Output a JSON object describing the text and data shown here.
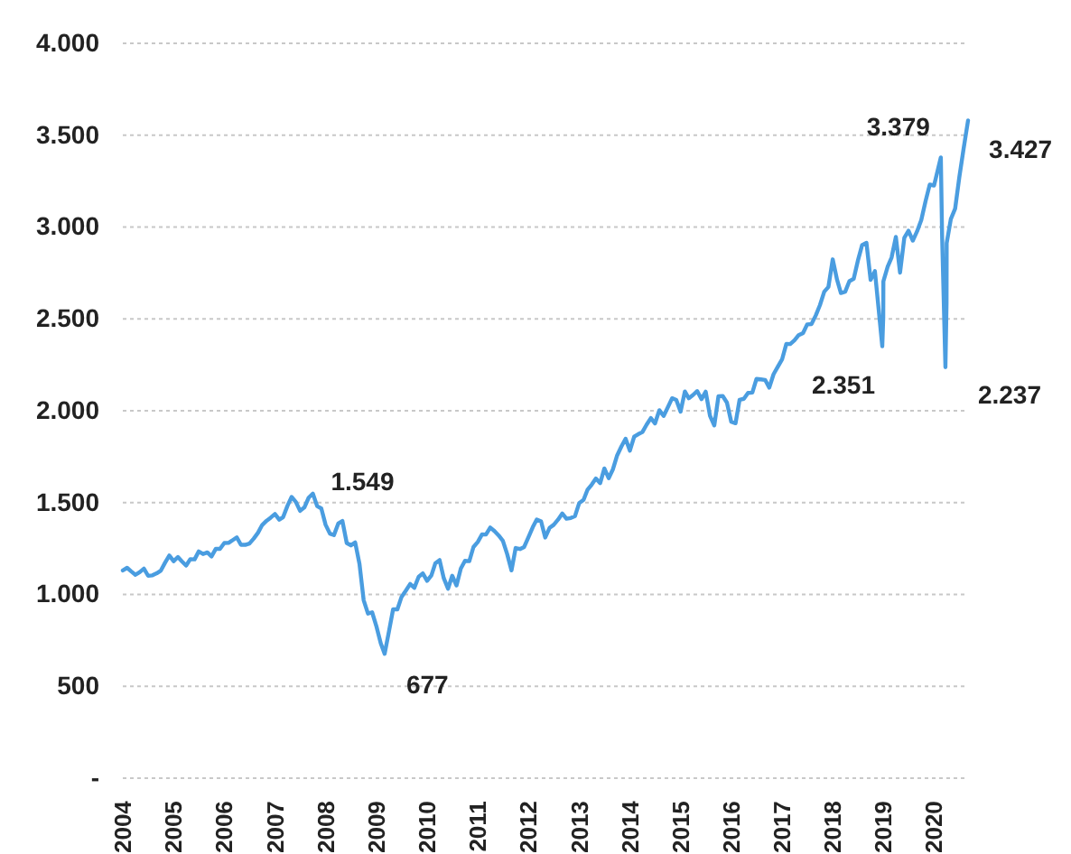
{
  "chart_data": {
    "type": "line",
    "grid": "y",
    "marker": "none",
    "line_style": "solid",
    "xlim": [
      "2004-01-01",
      "2020-09-02"
    ],
    "xticks": [
      "2004",
      "2005",
      "2006",
      "2007",
      "2008",
      "2009",
      "2010",
      "2011",
      "2012",
      "2013",
      "2014",
      "2015",
      "2016",
      "2017",
      "2018",
      "2019",
      "2020"
    ],
    "ylim": [
      0,
      4000
    ],
    "yticks": [
      {
        "value": 0,
        "label": "-"
      },
      500,
      {
        "value": 1000,
        "label": "1.000"
      },
      {
        "value": 1500,
        "label": "1.500"
      },
      {
        "value": 2000,
        "label": "2.000"
      },
      {
        "value": 2500,
        "label": "2.500"
      },
      {
        "value": 3000,
        "label": "3.000"
      },
      {
        "value": 3500,
        "label": "3.500"
      },
      {
        "value": 4000,
        "label": "4.000"
      }
    ],
    "x": [
      "2004-01",
      "2004-02",
      "2004-03",
      "2004-04",
      "2004-05",
      "2004-06",
      "2004-07",
      "2004-08",
      "2004-09",
      "2004-10",
      "2004-11",
      "2004-12",
      "2005-01",
      "2005-02",
      "2005-03",
      "2005-04",
      "2005-05",
      "2005-06",
      "2005-07",
      "2005-08",
      "2005-09",
      "2005-10",
      "2005-11",
      "2005-12",
      "2006-01",
      "2006-02",
      "2006-03",
      "2006-04",
      "2006-05",
      "2006-06",
      "2006-07",
      "2006-08",
      "2006-09",
      "2006-10",
      "2006-11",
      "2006-12",
      "2007-01",
      "2007-02",
      "2007-03",
      "2007-04",
      "2007-05",
      "2007-06",
      "2007-07",
      "2007-08",
      "2007-09",
      "2007-10",
      "2007-11",
      "2007-12",
      "2008-01",
      "2008-02",
      "2008-03",
      "2008-04",
      "2008-05",
      "2008-06",
      "2008-07",
      "2008-08",
      "2008-09",
      "2008-10",
      "2008-11",
      "2008-12",
      "2009-01",
      "2009-02",
      "2009-03",
      "2009-04",
      "2009-05",
      "2009-06",
      "2009-07",
      "2009-08",
      "2009-09",
      "2009-10",
      "2009-11",
      "2009-12",
      "2010-01",
      "2010-02",
      "2010-03",
      "2010-04",
      "2010-05",
      "2010-06",
      "2010-07",
      "2010-08",
      "2010-09",
      "2010-10",
      "2010-11",
      "2010-12",
      "2011-01",
      "2011-02",
      "2011-03",
      "2011-04",
      "2011-05",
      "2011-06",
      "2011-07",
      "2011-08",
      "2011-09",
      "2011-10",
      "2011-11",
      "2011-12",
      "2012-01",
      "2012-02",
      "2012-03",
      "2012-04",
      "2012-05",
      "2012-06",
      "2012-07",
      "2012-08",
      "2012-09",
      "2012-10",
      "2012-11",
      "2012-12",
      "2013-01",
      "2013-02",
      "2013-03",
      "2013-04",
      "2013-05",
      "2013-06",
      "2013-07",
      "2013-08",
      "2013-09",
      "2013-10",
      "2013-11",
      "2013-12",
      "2014-01",
      "2014-02",
      "2014-03",
      "2014-04",
      "2014-05",
      "2014-06",
      "2014-07",
      "2014-08",
      "2014-09",
      "2014-10",
      "2014-11",
      "2014-12",
      "2015-01",
      "2015-02",
      "2015-03",
      "2015-04",
      "2015-05",
      "2015-06",
      "2015-07",
      "2015-08",
      "2015-09",
      "2015-10",
      "2015-11",
      "2015-12",
      "2016-01",
      "2016-02",
      "2016-03",
      "2016-04",
      "2016-05",
      "2016-06",
      "2016-07",
      "2016-08",
      "2016-09",
      "2016-10",
      "2016-11",
      "2016-12",
      "2017-01",
      "2017-02",
      "2017-03",
      "2017-04",
      "2017-05",
      "2017-06",
      "2017-07",
      "2017-08",
      "2017-09",
      "2017-10",
      "2017-11",
      "2017-12",
      "2018-01",
      "2018-02",
      "2018-03",
      "2018-04",
      "2018-05",
      "2018-06",
      "2018-07",
      "2018-08",
      "2018-09",
      "2018-10",
      "2018-11",
      "2018-12-24",
      "2018-12-31",
      "2019-01",
      "2019-02",
      "2019-03",
      "2019-04",
      "2019-05",
      "2019-06",
      "2019-07",
      "2019-08",
      "2019-09",
      "2019-10",
      "2019-11",
      "2019-12",
      "2020-01",
      "2020-02-19",
      "2020-02-28",
      "2020-03-23",
      "2020-03-31",
      "2020-04",
      "2020-05",
      "2020-06",
      "2020-07",
      "2020-08",
      "2020-09-02"
    ],
    "series": [
      {
        "color": "#4a9de0",
        "values": [
          1131,
          1145,
          1126,
          1107,
          1121,
          1141,
          1102,
          1104,
          1115,
          1130,
          1174,
          1212,
          1181,
          1204,
          1181,
          1157,
          1192,
          1191,
          1234,
          1220,
          1229,
          1207,
          1249,
          1248,
          1280,
          1281,
          1295,
          1311,
          1270,
          1270,
          1277,
          1304,
          1336,
          1378,
          1401,
          1418,
          1438,
          1407,
          1421,
          1482,
          1531,
          1503,
          1455,
          1474,
          1527,
          1549,
          1481,
          1468,
          1379,
          1331,
          1323,
          1386,
          1400,
          1280,
          1267,
          1283,
          1166,
          969,
          896,
          903,
          826,
          735,
          677,
          798,
          919,
          919,
          987,
          1021,
          1057,
          1036,
          1096,
          1115,
          1074,
          1104,
          1169,
          1187,
          1089,
          1031,
          1102,
          1049,
          1141,
          1183,
          1181,
          1258,
          1286,
          1327,
          1326,
          1364,
          1345,
          1321,
          1292,
          1219,
          1131,
          1253,
          1247,
          1258,
          1312,
          1366,
          1408,
          1398,
          1310,
          1362,
          1379,
          1407,
          1441,
          1412,
          1416,
          1426,
          1498,
          1515,
          1569,
          1598,
          1631,
          1606,
          1686,
          1633,
          1682,
          1757,
          1806,
          1848,
          1783,
          1859,
          1872,
          1884,
          1924,
          1960,
          1931,
          2003,
          1972,
          2018,
          2068,
          2059,
          1995,
          2105,
          2068,
          2086,
          2107,
          2063,
          2104,
          1972,
          1920,
          2079,
          2080,
          2044,
          1940,
          1932,
          2060,
          2065,
          2097,
          2099,
          2174,
          2171,
          2168,
          2126,
          2199,
          2239,
          2279,
          2364,
          2363,
          2384,
          2412,
          2423,
          2470,
          2472,
          2519,
          2575,
          2648,
          2674,
          2824,
          2714,
          2641,
          2648,
          2705,
          2718,
          2816,
          2902,
          2914,
          2712,
          2760,
          2351,
          2507,
          2704,
          2784,
          2834,
          2946,
          2752,
          2942,
          2980,
          2926,
          2977,
          3038,
          3141,
          3231,
          3226,
          3379,
          2954,
          2237,
          2585,
          2912,
          3044,
          3100,
          3271,
          3427,
          3580
        ]
      }
    ],
    "annotations": [
      {
        "text": "1.549",
        "x": "2007-10",
        "y": 1549
      },
      {
        "text": "677",
        "x": "2009-03",
        "y": 677
      },
      {
        "text": "2.351",
        "x": "2018-12-24",
        "y": 2351
      },
      {
        "text": "3.379",
        "x": "2020-02-19",
        "y": 3379
      },
      {
        "text": "2.237",
        "x": "2020-03-23",
        "y": 2237
      },
      {
        "text": "3.427",
        "x": "2020-08",
        "y": 3427
      }
    ]
  }
}
